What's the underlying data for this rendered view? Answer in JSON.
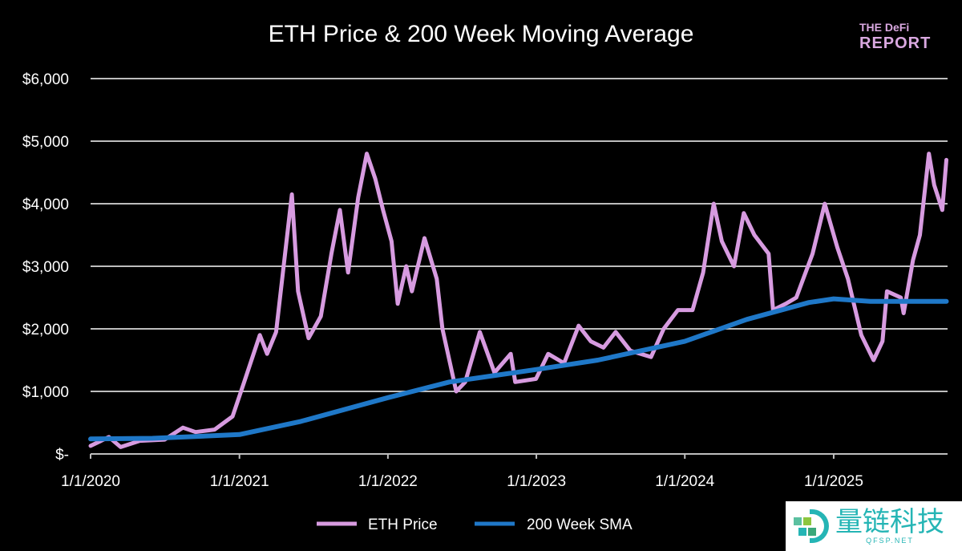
{
  "chart_data": {
    "type": "line",
    "title": "ETH Price & 200 Week Moving Average",
    "xlabel": "",
    "ylabel": "",
    "ylim": [
      0,
      6000
    ],
    "xlim": [
      "2020-01-01",
      "2025-10-08"
    ],
    "y_ticks": [
      "$-",
      "$1,000",
      "$2,000",
      "$3,000",
      "$4,000",
      "$5,000",
      "$6,000"
    ],
    "y_tick_values": [
      0,
      1000,
      2000,
      3000,
      4000,
      5000,
      6000
    ],
    "x_ticks": [
      "1/1/2020",
      "1/1/2021",
      "1/1/2022",
      "1/1/2023",
      "1/1/2024",
      "1/1/2025"
    ],
    "x_tick_values": [
      "2020-01-01",
      "2021-01-01",
      "2022-01-01",
      "2023-01-01",
      "2024-01-01",
      "2025-01-01"
    ],
    "grid": true,
    "legend": "bottom",
    "series": [
      {
        "name": "ETH Price",
        "color": "#d79be0",
        "points": [
          [
            "2020-01-01",
            130
          ],
          [
            "2020-02-15",
            270
          ],
          [
            "2020-03-15",
            110
          ],
          [
            "2020-05-01",
            210
          ],
          [
            "2020-07-01",
            230
          ],
          [
            "2020-08-15",
            420
          ],
          [
            "2020-09-15",
            350
          ],
          [
            "2020-11-01",
            390
          ],
          [
            "2020-12-15",
            600
          ],
          [
            "2021-01-10",
            1100
          ],
          [
            "2021-02-20",
            1900
          ],
          [
            "2021-03-10",
            1600
          ],
          [
            "2021-04-01",
            1950
          ],
          [
            "2021-05-10",
            4150
          ],
          [
            "2021-05-25",
            2600
          ],
          [
            "2021-06-20",
            1850
          ],
          [
            "2021-07-20",
            2200
          ],
          [
            "2021-08-15",
            3200
          ],
          [
            "2021-09-05",
            3900
          ],
          [
            "2021-09-25",
            2900
          ],
          [
            "2021-10-20",
            4100
          ],
          [
            "2021-11-10",
            4800
          ],
          [
            "2021-12-01",
            4400
          ],
          [
            "2021-12-20",
            3900
          ],
          [
            "2022-01-10",
            3400
          ],
          [
            "2022-01-25",
            2400
          ],
          [
            "2022-02-15",
            3000
          ],
          [
            "2022-03-01",
            2600
          ],
          [
            "2022-04-01",
            3450
          ],
          [
            "2022-05-01",
            2800
          ],
          [
            "2022-05-15",
            2000
          ],
          [
            "2022-06-18",
            1000
          ],
          [
            "2022-07-10",
            1150
          ],
          [
            "2022-08-15",
            1950
          ],
          [
            "2022-09-20",
            1300
          ],
          [
            "2022-10-30",
            1600
          ],
          [
            "2022-11-10",
            1150
          ],
          [
            "2022-12-31",
            1200
          ],
          [
            "2023-01-30",
            1600
          ],
          [
            "2023-03-10",
            1450
          ],
          [
            "2023-04-15",
            2050
          ],
          [
            "2023-05-15",
            1800
          ],
          [
            "2023-06-15",
            1700
          ],
          [
            "2023-07-15",
            1950
          ],
          [
            "2023-08-20",
            1650
          ],
          [
            "2023-10-10",
            1550
          ],
          [
            "2023-11-10",
            2000
          ],
          [
            "2023-12-15",
            2300
          ],
          [
            "2024-01-20",
            2300
          ],
          [
            "2024-02-15",
            2900
          ],
          [
            "2024-03-12",
            4000
          ],
          [
            "2024-04-01",
            3400
          ],
          [
            "2024-05-01",
            3000
          ],
          [
            "2024-05-25",
            3850
          ],
          [
            "2024-06-20",
            3500
          ],
          [
            "2024-07-25",
            3200
          ],
          [
            "2024-08-05",
            2300
          ],
          [
            "2024-09-05",
            2400
          ],
          [
            "2024-10-01",
            2500
          ],
          [
            "2024-11-10",
            3200
          ],
          [
            "2024-12-10",
            4000
          ],
          [
            "2025-01-10",
            3300
          ],
          [
            "2025-02-05",
            2800
          ],
          [
            "2025-03-10",
            1900
          ],
          [
            "2025-04-09",
            1500
          ],
          [
            "2025-05-01",
            1800
          ],
          [
            "2025-05-12",
            2600
          ],
          [
            "2025-06-15",
            2500
          ],
          [
            "2025-06-22",
            2250
          ],
          [
            "2025-07-15",
            3100
          ],
          [
            "2025-08-01",
            3500
          ],
          [
            "2025-08-23",
            4800
          ],
          [
            "2025-09-05",
            4300
          ],
          [
            "2025-09-25",
            3900
          ],
          [
            "2025-10-05",
            4700
          ]
        ]
      },
      {
        "name": "200 Week SMA",
        "color": "#1f78c8",
        "points": [
          [
            "2020-01-01",
            240
          ],
          [
            "2020-06-01",
            250
          ],
          [
            "2021-01-01",
            310
          ],
          [
            "2021-06-01",
            520
          ],
          [
            "2022-01-01",
            900
          ],
          [
            "2022-06-01",
            1150
          ],
          [
            "2023-01-01",
            1350
          ],
          [
            "2023-06-01",
            1500
          ],
          [
            "2024-01-01",
            1800
          ],
          [
            "2024-06-01",
            2150
          ],
          [
            "2024-11-01",
            2420
          ],
          [
            "2025-01-01",
            2480
          ],
          [
            "2025-04-01",
            2440
          ],
          [
            "2025-10-05",
            2440
          ]
        ]
      }
    ]
  },
  "logo": {
    "line1": "THE DeFi",
    "line2": "REPORT"
  },
  "watermark": {
    "text": "量链科技",
    "sub": "QFSP.NET"
  }
}
